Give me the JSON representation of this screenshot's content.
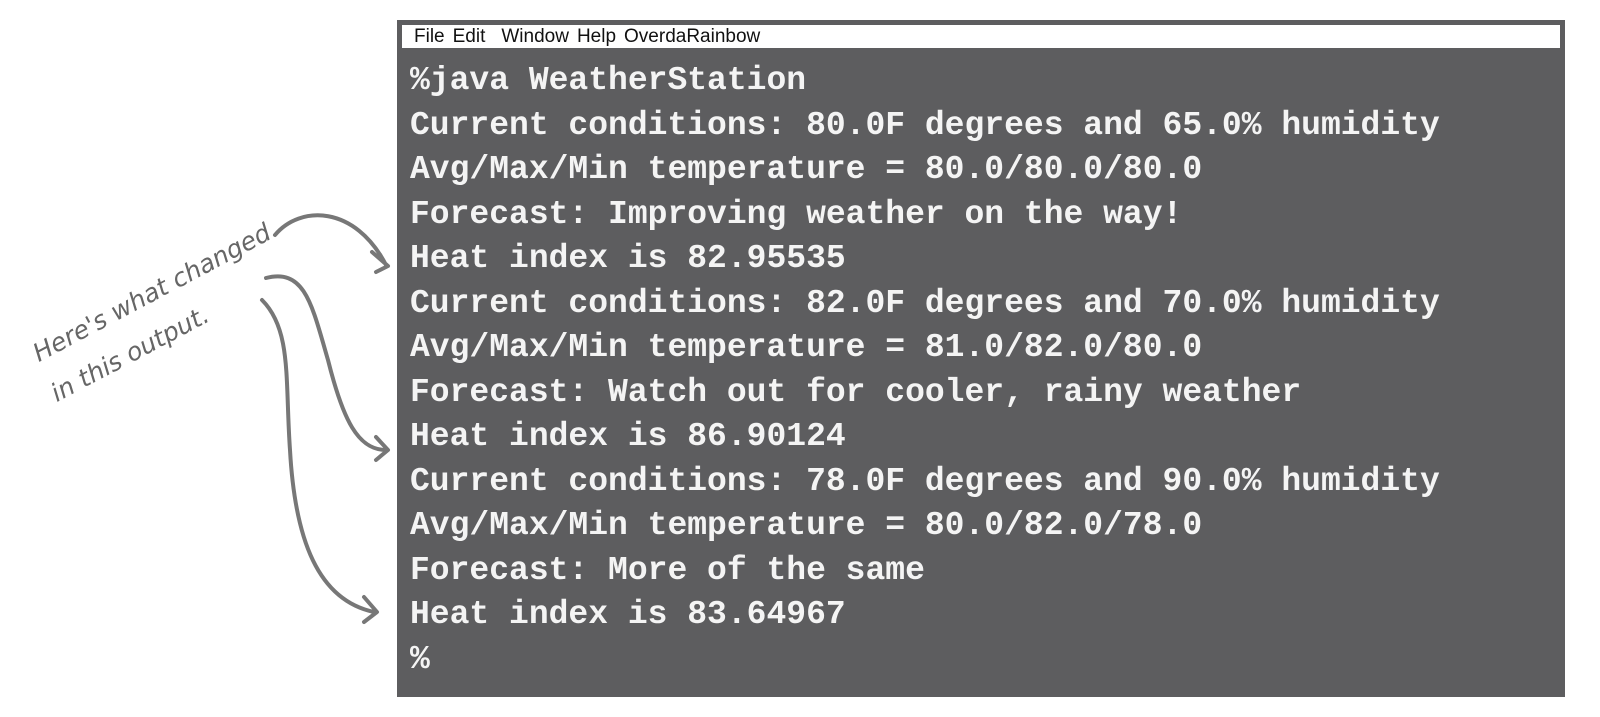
{
  "annotation": {
    "lines": [
      "Here's what changed",
      "in this output."
    ]
  },
  "window": {
    "menu": [
      "File",
      "Edit",
      "Window",
      "Help",
      "OverdaRainbow"
    ],
    "lines": [
      "%java WeatherStation",
      "Current conditions: 80.0F degrees and 65.0% humidity",
      "Avg/Max/Min temperature = 80.0/80.0/80.0",
      "Forecast: Improving weather on the way!",
      "Heat index is 82.95535",
      "Current conditions: 82.0F degrees and 70.0% humidity",
      "Avg/Max/Min temperature = 81.0/82.0/80.0",
      "Forecast: Watch out for cooler, rainy weather",
      "Heat index is 86.90124",
      "Current conditions: 78.0F degrees and 90.0% humidity",
      "Avg/Max/Min temperature = 80.0/82.0/78.0",
      "Forecast: More of the same",
      "Heat index is 83.64967",
      "%"
    ]
  }
}
